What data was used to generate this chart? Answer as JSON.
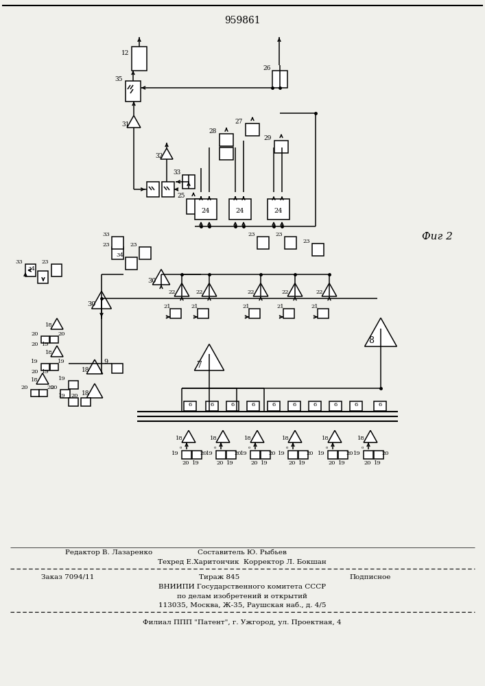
{
  "title": "959861",
  "fig2_label": "Фиг 2",
  "bg_color": "#f0f0eb",
  "footer1a": "Редактор В. Лазаренко",
  "footer1b": "Составитель Ю. Рыбьев",
  "footer2": "Техред Е.Харитончик  Корректор Л. Бокшан",
  "footer3a": "Заказ 7094/11",
  "footer3b": "Тираж 845",
  "footer3c": "Подписное",
  "footer4": "ВНИИПИ Государственного комитета СССР",
  "footer5": "по делам изобретений и открытий",
  "footer6": "113035, Москва, Ж-35, Раушская наб., д. 4/5",
  "footer7": "Филиал ППП \"Патент\", г. Ужгород, ул. Проектная, 4"
}
